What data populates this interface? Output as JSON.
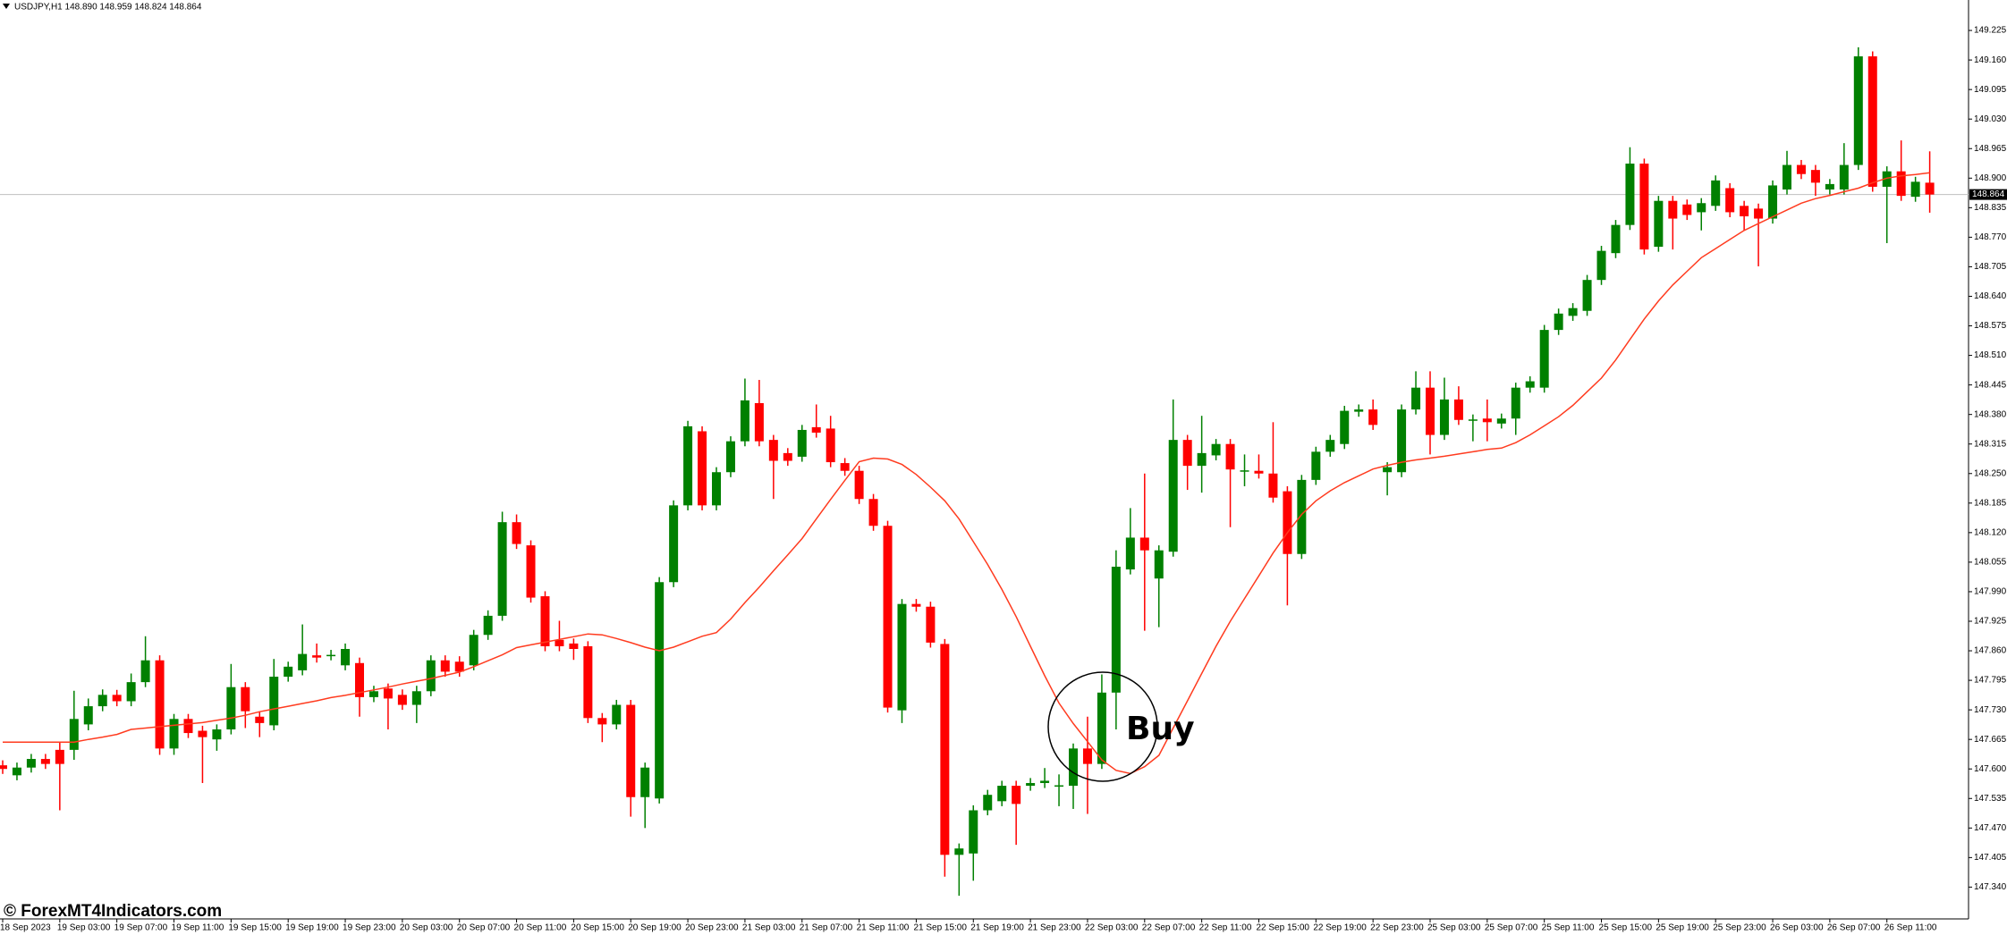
{
  "chart_data": {
    "type": "candlestick",
    "title": "USDJPY,H1  148.890 148.959 148.824 148.864",
    "annotation": "Buy",
    "watermark": "© ForexMT4Indicators.com",
    "up_color": "#008000",
    "down_color": "#ff0000",
    "ylim": [
      147.27,
      149.292
    ],
    "yticks": [
      {
        "value": 147.34,
        "label": "147.340"
      },
      147.405,
      {
        "value": 147.47,
        "label": "147.470"
      },
      147.535,
      {
        "value": 147.6,
        "label": "147.600"
      },
      147.665,
      {
        "value": 147.73,
        "label": "147.730"
      },
      147.795,
      {
        "value": 147.86,
        "label": "147.860"
      },
      147.925,
      {
        "value": 147.99,
        "label": "147.990"
      },
      148.055,
      {
        "value": 148.12,
        "label": "148.120"
      },
      148.185,
      {
        "value": 148.25,
        "label": "148.250"
      },
      148.315,
      {
        "value": 148.38,
        "label": "148.380"
      },
      148.445,
      {
        "value": 148.51,
        "label": "148.510"
      },
      148.575,
      {
        "value": 148.64,
        "label": "148.640"
      },
      148.705,
      {
        "value": 148.77,
        "label": "148.770"
      },
      148.835,
      {
        "value": 148.9,
        "label": "148.900"
      },
      148.965,
      {
        "value": 149.03,
        "label": "149.030"
      },
      149.095,
      {
        "value": 149.16,
        "label": "149.160"
      },
      149.225
    ],
    "current_price": 148.864,
    "categories": [
      "18 Sep 2023",
      null,
      null,
      null,
      "19 Sep 03:00",
      null,
      null,
      null,
      "19 Sep 07:00",
      null,
      null,
      null,
      "19 Sep 11:00",
      null,
      null,
      null,
      "19 Sep 15:00",
      null,
      null,
      null,
      "19 Sep 19:00",
      null,
      null,
      null,
      "19 Sep 23:00",
      null,
      null,
      null,
      "20 Sep 03:00",
      null,
      null,
      null,
      "20 Sep 07:00",
      null,
      null,
      null,
      "20 Sep 11:00",
      null,
      null,
      null,
      "20 Sep 15:00",
      null,
      null,
      null,
      "20 Sep 19:00",
      null,
      null,
      null,
      "20 Sep 23:00",
      null,
      null,
      null,
      "21 Sep 03:00",
      null,
      null,
      null,
      "21 Sep 07:00",
      null,
      null,
      null,
      "21 Sep 11:00",
      null,
      null,
      null,
      "21 Sep 15:00",
      null,
      null,
      null,
      "21 Sep 19:00",
      null,
      null,
      null,
      "21 Sep 23:00",
      null,
      null,
      null,
      "22 Sep 03:00",
      null,
      null,
      null,
      "22 Sep 07:00",
      null,
      null,
      null,
      "22 Sep 11:00",
      null,
      null,
      null,
      "22 Sep 15:00",
      null,
      null,
      null,
      "22 Sep 19:00",
      null,
      null,
      null,
      "22 Sep 23:00",
      null,
      null,
      null,
      "25 Sep 03:00",
      null,
      null,
      null,
      "25 Sep 07:00",
      null,
      null,
      null,
      "25 Sep 11:00",
      null,
      null,
      null,
      "25 Sep 15:00",
      null,
      null,
      null,
      "25 Sep 19:00",
      null,
      null,
      null,
      "25 Sep 23:00",
      null,
      null,
      null,
      "26 Sep 03:00",
      null,
      null,
      null,
      "26 Sep 07:00",
      null,
      null,
      null,
      "26 Sep 11:00",
      null,
      null,
      null
    ],
    "open": [
      147.608,
      147.586,
      147.603,
      147.622,
      147.642,
      147.642,
      147.698,
      147.738,
      147.763,
      147.749,
      147.791,
      147.839,
      147.645,
      147.71,
      147.684,
      147.665,
      147.687,
      147.78,
      147.715,
      147.696,
      147.803,
      147.817,
      147.85,
      147.85,
      147.828,
      147.833,
      147.758,
      147.777,
      147.763,
      147.741,
      147.771,
      147.839,
      147.836,
      147.828,
      147.895,
      147.937,
      148.143,
      148.092,
      147.98,
      147.884,
      147.876,
      147.87,
      147.712,
      147.698,
      147.741,
      147.538,
      147.535,
      148.011,
      148.18,
      148.343,
      148.18,
      148.253,
      148.321,
      148.405,
      148.324,
      148.295,
      148.287,
      148.352,
      148.349,
      148.273,
      148.256,
      148.194,
      148.135,
      147.729,
      147.963,
      147.957,
      147.875,
      147.411,
      147.414,
      147.509,
      147.529,
      147.563,
      147.563,
      147.569,
      147.563,
      147.563,
      147.645,
      147.611,
      147.768,
      148.039,
      148.109,
      148.019,
      148.078,
      148.324,
      148.267,
      148.29,
      148.315,
      148.256,
      148.256,
      148.25,
      148.211,
      148.073,
      148.236,
      148.298,
      148.315,
      148.386,
      148.391,
      148.253,
      148.253,
      148.391,
      148.439,
      148.335,
      148.413,
      148.368,
      148.371,
      148.36,
      148.371,
      148.439,
      148.439,
      148.566,
      148.597,
      148.608,
      148.676,
      148.735,
      148.797,
      148.932,
      148.749,
      148.85,
      148.842,
      148.825,
      148.839,
      148.878,
      148.839,
      148.833,
      148.811,
      148.875,
      148.929,
      148.918,
      148.875,
      148.875,
      148.929,
      149.168,
      148.881,
      148.915,
      148.859,
      148.89
    ],
    "high": [
      147.619,
      147.614,
      147.633,
      147.633,
      147.66,
      147.772,
      147.755,
      147.775,
      147.774,
      147.81,
      147.892,
      147.85,
      147.721,
      147.721,
      147.695,
      147.698,
      147.831,
      147.791,
      147.726,
      147.842,
      147.836,
      147.918,
      147.876,
      147.862,
      147.876,
      147.845,
      147.783,
      147.788,
      147.775,
      147.783,
      147.85,
      147.85,
      147.848,
      147.906,
      147.949,
      148.166,
      148.16,
      148.103,
      147.991,
      147.926,
      147.887,
      147.881,
      147.723,
      147.752,
      147.752,
      147.614,
      148.022,
      148.191,
      148.366,
      148.354,
      148.264,
      148.332,
      148.459,
      148.456,
      148.335,
      148.306,
      148.357,
      148.402,
      148.377,
      148.284,
      148.267,
      148.205,
      148.146,
      147.974,
      147.974,
      147.968,
      147.886,
      147.436,
      147.52,
      147.554,
      147.574,
      147.574,
      147.58,
      147.602,
      147.588,
      147.656,
      147.715,
      147.808,
      148.081,
      148.174,
      148.25,
      148.092,
      148.413,
      148.335,
      148.377,
      148.326,
      148.326,
      148.292,
      148.292,
      148.363,
      148.222,
      148.247,
      148.309,
      148.335,
      148.399,
      148.402,
      148.413,
      148.275,
      148.402,
      148.475,
      148.475,
      148.461,
      148.442,
      148.38,
      148.413,
      148.382,
      148.45,
      148.464,
      148.577,
      148.613,
      148.625,
      148.687,
      148.751,
      148.808,
      148.968,
      148.943,
      148.861,
      148.861,
      148.853,
      148.856,
      148.906,
      148.889,
      148.85,
      148.844,
      148.895,
      148.96,
      148.94,
      148.929,
      148.898,
      148.977,
      149.188,
      149.179,
      148.926,
      148.983,
      148.903,
      148.959
    ],
    "low": [
      147.589,
      147.575,
      147.592,
      147.6,
      147.509,
      147.62,
      147.685,
      147.727,
      147.738,
      147.738,
      147.78,
      147.631,
      147.631,
      147.668,
      147.569,
      147.64,
      147.676,
      147.69,
      147.67,
      147.685,
      147.792,
      147.806,
      147.834,
      147.839,
      147.817,
      147.715,
      147.747,
      147.687,
      147.73,
      147.701,
      147.76,
      147.803,
      147.803,
      147.817,
      147.884,
      147.926,
      148.084,
      147.966,
      147.859,
      147.859,
      147.84,
      147.701,
      147.659,
      147.687,
      147.495,
      147.47,
      147.524,
      148.0,
      148.169,
      148.169,
      148.169,
      148.242,
      148.31,
      148.31,
      148.194,
      148.267,
      148.276,
      148.329,
      148.264,
      148.245,
      148.183,
      148.124,
      147.724,
      147.701,
      147.946,
      147.867,
      147.363,
      147.321,
      147.354,
      147.498,
      147.518,
      147.433,
      147.552,
      147.558,
      147.518,
      147.512,
      147.501,
      147.6,
      147.687,
      148.028,
      147.904,
      147.912,
      148.067,
      148.214,
      148.208,
      148.279,
      148.132,
      148.222,
      148.239,
      148.186,
      147.96,
      148.062,
      148.225,
      148.287,
      148.304,
      148.375,
      148.346,
      148.202,
      148.242,
      148.38,
      148.292,
      148.324,
      148.357,
      148.321,
      148.321,
      148.349,
      148.335,
      148.428,
      148.428,
      148.555,
      148.586,
      148.597,
      148.665,
      148.724,
      148.786,
      148.732,
      148.738,
      148.743,
      148.808,
      148.785,
      148.828,
      148.814,
      148.785,
      148.706,
      148.8,
      148.864,
      148.898,
      148.861,
      148.864,
      148.864,
      148.918,
      148.87,
      148.757,
      148.85,
      148.848,
      148.824
    ],
    "close": [
      147.6,
      147.603,
      147.622,
      147.611,
      147.611,
      147.71,
      147.738,
      147.763,
      147.749,
      147.791,
      147.839,
      147.645,
      147.71,
      147.679,
      147.67,
      147.687,
      147.78,
      147.727,
      147.701,
      147.803,
      147.825,
      147.853,
      147.845,
      147.851,
      147.864,
      147.758,
      147.771,
      147.755,
      147.741,
      147.771,
      147.839,
      147.814,
      147.814,
      147.895,
      147.937,
      148.143,
      148.095,
      147.977,
      147.87,
      147.87,
      147.864,
      147.712,
      147.698,
      147.741,
      147.538,
      147.603,
      148.011,
      148.18,
      148.354,
      148.18,
      148.253,
      148.321,
      148.411,
      148.321,
      148.278,
      148.278,
      148.346,
      148.34,
      148.275,
      148.256,
      148.194,
      148.135,
      147.735,
      147.963,
      147.957,
      147.878,
      147.411,
      147.425,
      147.509,
      147.543,
      147.563,
      147.523,
      147.569,
      147.574,
      147.564,
      147.645,
      147.611,
      147.768,
      148.045,
      148.109,
      148.081,
      148.081,
      148.324,
      148.267,
      148.295,
      148.315,
      148.259,
      148.257,
      148.25,
      148.197,
      148.073,
      148.236,
      148.298,
      148.324,
      148.388,
      148.391,
      148.357,
      148.264,
      148.391,
      148.439,
      148.335,
      148.413,
      148.368,
      148.369,
      148.363,
      148.371,
      148.439,
      148.453,
      148.566,
      148.602,
      148.614,
      148.676,
      148.74,
      148.797,
      148.932,
      148.743,
      148.85,
      148.811,
      148.819,
      148.845,
      148.895,
      148.825,
      148.816,
      148.811,
      148.884,
      148.929,
      148.909,
      148.89,
      148.887,
      148.929,
      149.168,
      148.881,
      148.915,
      148.861,
      148.892,
      148.864
    ],
    "moving_average": {
      "color": "#ff3b1f",
      "values": [
        147.659,
        147.659,
        147.659,
        147.659,
        147.659,
        147.659,
        147.665,
        147.67,
        147.676,
        147.687,
        147.69,
        147.693,
        147.696,
        147.699,
        147.702,
        147.707,
        147.712,
        147.718,
        147.726,
        147.732,
        147.738,
        147.744,
        147.75,
        147.757,
        147.762,
        147.768,
        147.774,
        147.78,
        147.787,
        147.793,
        147.799,
        147.806,
        147.813,
        147.825,
        147.838,
        147.851,
        147.867,
        147.873,
        147.879,
        147.885,
        147.891,
        147.897,
        147.895,
        147.887,
        147.878,
        147.868,
        147.86,
        147.868,
        147.88,
        147.892,
        147.9,
        147.93,
        147.966,
        148.0,
        148.036,
        148.071,
        148.107,
        148.15,
        148.193,
        148.235,
        148.276,
        148.284,
        148.282,
        148.27,
        148.248,
        148.22,
        148.19,
        148.15,
        148.1,
        148.05,
        147.995,
        147.935,
        147.87,
        147.805,
        147.745,
        147.7,
        147.66,
        147.62,
        147.597,
        147.59,
        147.605,
        147.63,
        147.69,
        147.75,
        147.81,
        147.87,
        147.925,
        147.975,
        148.025,
        148.075,
        148.12,
        148.16,
        148.19,
        148.212,
        148.23,
        148.245,
        148.26,
        148.268,
        148.275,
        148.28,
        148.284,
        148.288,
        148.293,
        148.298,
        148.303,
        148.306,
        148.318,
        148.335,
        148.355,
        148.375,
        148.4,
        148.43,
        148.46,
        148.5,
        148.545,
        148.59,
        148.63,
        148.665,
        148.695,
        148.725,
        148.745,
        148.765,
        148.785,
        148.8,
        148.815,
        148.83,
        148.845,
        148.855,
        148.862,
        148.87,
        148.878,
        148.89,
        148.9,
        148.905,
        148.908,
        148.912
      ]
    }
  }
}
